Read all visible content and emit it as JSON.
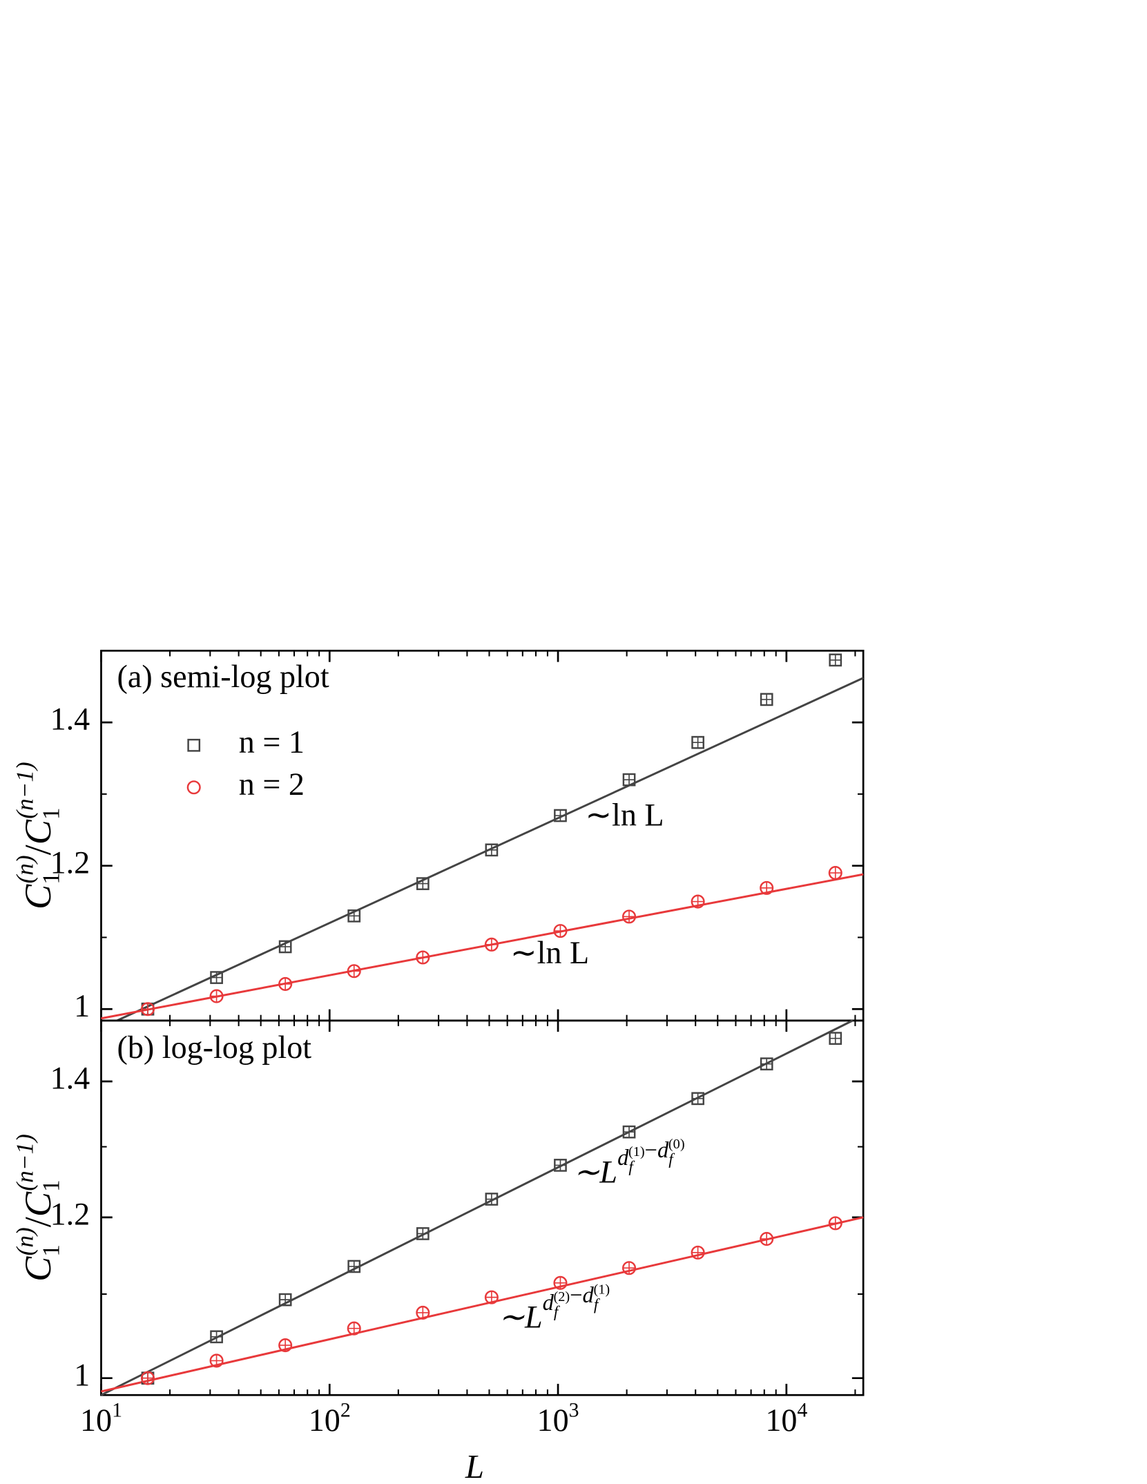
{
  "chart_data": [
    {
      "type": "scatter",
      "log_x": true,
      "log_y": false,
      "annotations": [
        "(a) semi-log plot",
        "∼ln L",
        "∼ln L"
      ],
      "ylabel": {
        "num": [
          "C",
          "1",
          "(n)"
        ],
        "sep": "/",
        "den": [
          "C",
          "1",
          "(n−1)"
        ]
      },
      "xlim": [
        10,
        21700
      ],
      "xticks": [
        10,
        100,
        1000,
        10000
      ],
      "ylim": [
        0.984,
        1.5
      ],
      "yticks": [
        1.0,
        1.2,
        1.4
      ],
      "x": [
        16,
        32,
        64,
        128,
        256,
        512,
        1024,
        2048,
        4096,
        8192,
        16384
      ],
      "series": [
        {
          "name": "n = 1",
          "color": "#444444",
          "marker": "square",
          "values": [
            1.0,
            1.044,
            1.087,
            1.13,
            1.175,
            1.222,
            1.27,
            1.32,
            1.372,
            1.432,
            1.487
          ]
        },
        {
          "name": "n = 2",
          "color": "#e8393b",
          "marker": "circle",
          "values": [
            1.0,
            1.018,
            1.035,
            1.053,
            1.072,
            1.09,
            1.109,
            1.129,
            1.15,
            1.169,
            1.19
          ]
        }
      ],
      "fits": [
        {
          "color": "#444444",
          "x": [
            11.74,
            21700
          ],
          "values": [
            0.984,
            1.462
          ]
        },
        {
          "color": "#e8393b",
          "x": [
            10,
            21700
          ],
          "values": [
            0.987,
            1.188
          ]
        }
      ]
    },
    {
      "type": "scatter",
      "log_x": true,
      "log_y": true,
      "annotations": [
        "(b) log-log plot"
      ],
      "power_labels": [
        {
          "base": "∼L",
          "terms": [
            [
              "d",
              "f",
              "(1)"
            ],
            [
              "d",
              "f",
              "(0)"
            ]
          ],
          "operator": "−"
        },
        {
          "base": "∼L",
          "terms": [
            [
              "d",
              "f",
              "(2)"
            ],
            [
              "d",
              "f",
              "(1)"
            ]
          ],
          "operator": "−"
        }
      ],
      "xlabel": "L",
      "ylabel": {
        "num": [
          "C",
          "1",
          "(n)"
        ],
        "sep": "/",
        "den": [
          "C",
          "1",
          "(n−1)"
        ]
      },
      "xlim": [
        10,
        21700
      ],
      "xticks": [
        {
          "value": 10,
          "label": "10",
          "exp": "1"
        },
        {
          "value": 100,
          "label": "10",
          "exp": "2"
        },
        {
          "value": 1000,
          "label": "10",
          "exp": "3"
        },
        {
          "value": 10000,
          "label": "10",
          "exp": "4"
        }
      ],
      "ylim": [
        0.981,
        1.5
      ],
      "yticks": [
        1.0,
        1.2,
        1.4
      ],
      "x": [
        16,
        32,
        64,
        128,
        256,
        512,
        1024,
        2048,
        4096,
        8192,
        16384
      ],
      "series": [
        {
          "name": "n = 1",
          "color": "#444444",
          "marker": "square",
          "values": [
            1.0,
            1.048,
            1.093,
            1.135,
            1.178,
            1.225,
            1.273,
            1.322,
            1.373,
            1.428,
            1.47
          ]
        },
        {
          "name": "n = 2",
          "color": "#e8393b",
          "marker": "circle",
          "values": [
            1.0,
            1.02,
            1.038,
            1.058,
            1.077,
            1.096,
            1.114,
            1.133,
            1.153,
            1.171,
            1.192
          ]
        }
      ],
      "fits": [
        {
          "color": "#444444",
          "x": [
            10,
            19500
          ],
          "values": [
            0.981,
            1.5
          ]
        },
        {
          "color": "#e8393b",
          "x": [
            10,
            21700
          ],
          "values": [
            0.985,
            1.2
          ]
        }
      ]
    }
  ]
}
